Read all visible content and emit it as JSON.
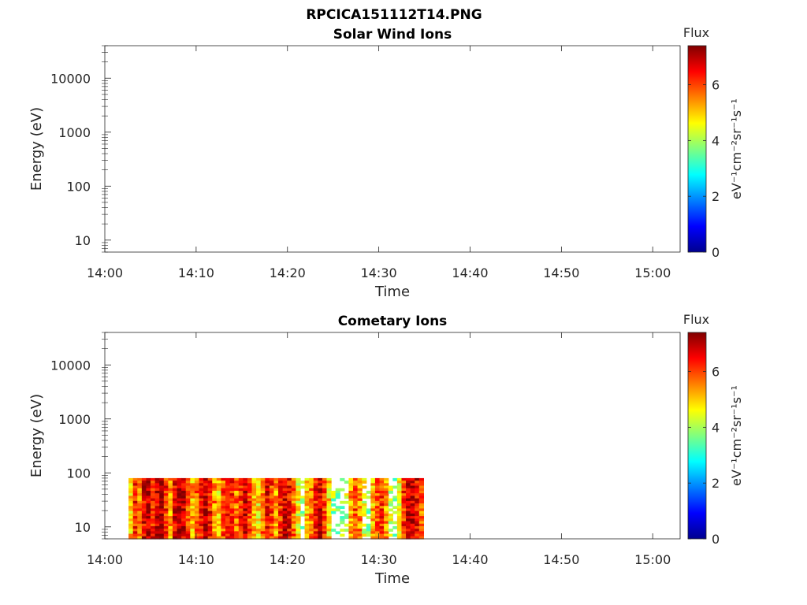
{
  "figure_title": "RPCICA151112T14.PNG",
  "chart_data": [
    {
      "type": "heatmap",
      "title": "Solar Wind Ions",
      "xlabel": "Time",
      "ylabel": "Energy (eV)",
      "x_ticks": [
        "14:00",
        "14:10",
        "14:20",
        "14:30",
        "14:40",
        "14:50",
        "15:00"
      ],
      "xlim": [
        "14:00",
        "15:03"
      ],
      "y_scale": "log",
      "y_ticks": [
        "10",
        "100",
        "1000",
        "10000"
      ],
      "ylim": [
        6,
        40000
      ],
      "colorbar": {
        "label": "Flux",
        "units": "eV⁻¹cm⁻²sr⁻¹s⁻¹",
        "ticks": [
          "0",
          "2",
          "4",
          "6"
        ],
        "range": [
          0,
          7.4
        ],
        "colormap": "jet"
      },
      "data_extent": null
    },
    {
      "type": "heatmap",
      "title": "Cometary Ions",
      "xlabel": "Time",
      "ylabel": "Energy (eV)",
      "x_ticks": [
        "14:00",
        "14:10",
        "14:20",
        "14:30",
        "14:40",
        "14:50",
        "15:00"
      ],
      "xlim": [
        "14:00",
        "15:03"
      ],
      "y_scale": "log",
      "y_ticks": [
        "10",
        "100",
        "1000",
        "10000"
      ],
      "ylim": [
        6,
        40000
      ],
      "colorbar": {
        "label": "Flux",
        "units": "eV⁻¹cm⁻²sr⁻¹s⁻¹",
        "ticks": [
          "0",
          "2",
          "4",
          "6"
        ],
        "range": [
          0,
          7.4
        ],
        "colormap": "jet"
      },
      "data_extent": {
        "time_start": "14:02.6",
        "time_end": "14:34.9",
        "energy_min": 6,
        "energy_max": 80,
        "column_levels": [
          5.0,
          6.2,
          5.6,
          6.6,
          7.0,
          6.4,
          6.8,
          6.9,
          6.2,
          5.4,
          6.6,
          7.0,
          6.8,
          6.1,
          5.2,
          5.8,
          6.5,
          6.9,
          6.4,
          5.5,
          4.9,
          5.9,
          6.6,
          6.2,
          5.6,
          6.3,
          6.9,
          6.0,
          5.1,
          4.8,
          5.7,
          6.5,
          6.1,
          5.3,
          6.2,
          6.8,
          6.5,
          5.8,
          4.6,
          3.8,
          4.9,
          5.6,
          6.3,
          6.8,
          6.1,
          4.9,
          3.9,
          3.4,
          3.7,
          4.1,
          5.3,
          5.9,
          5.5,
          4.4,
          3.5,
          5.2,
          5.8,
          6.1,
          5.4,
          4.2,
          3.6,
          4.5,
          6.2,
          7.0,
          6.9,
          6.6,
          5.8
        ]
      }
    }
  ]
}
